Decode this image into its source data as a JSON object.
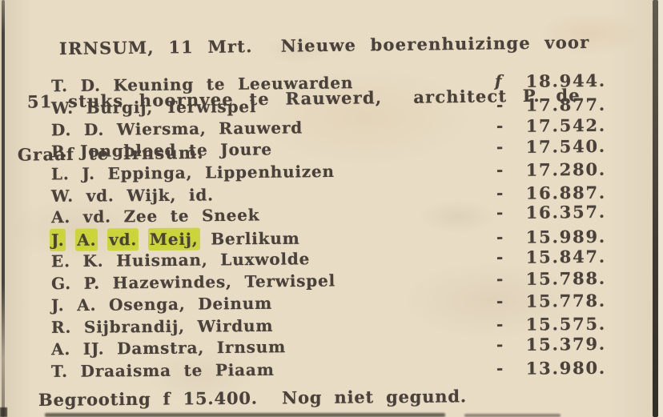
{
  "clipping": {
    "header": {
      "line1": "IRNSUM, 11 Mrt.  Nieuwe boerenhuizinge voor",
      "line2": "51 stuks hoornvee te Rauwerd,  architect P. de",
      "line3": "Graaf te Irnsum."
    },
    "rows": [
      {
        "name": "T. D. Keuning te Leeuwarden",
        "prefix": "f",
        "amount": "18.944."
      },
      {
        "name": "W. Burgij, Terwispel",
        "prefix": "-",
        "amount": "17.877."
      },
      {
        "name": "D. D. Wiersma, Rauwerd",
        "prefix": "-",
        "amount": "17.542."
      },
      {
        "name": "P. Jongbloed te Joure",
        "prefix": "-",
        "amount": "17.540."
      },
      {
        "name": "L. J. Eppinga, Lippenhuizen",
        "prefix": "-",
        "amount": "17.280."
      },
      {
        "name": "W. vd. Wijk, id.",
        "prefix": "-",
        "amount": "16.887."
      },
      {
        "name": "A. vd. Zee te Sneek",
        "prefix": "-",
        "amount": "16.357."
      },
      {
        "highlight": "J. A. vd. Meij,",
        "rest": " Berlikum",
        "prefix": "-",
        "amount": "15.989."
      },
      {
        "name": "E. K. Huisman, Luxwolde",
        "prefix": "-",
        "amount": "15.847."
      },
      {
        "name": "G. P. Hazewindes, Terwispel",
        "prefix": "-",
        "amount": "15.788."
      },
      {
        "name": "J. A. Osenga, Deinum",
        "prefix": "-",
        "amount": "15.778."
      },
      {
        "name": "R. Sijbrandij, Wirdum",
        "prefix": "-",
        "amount": "15.575."
      },
      {
        "name": "A. IJ. Damstra, Irnsum",
        "prefix": "-",
        "amount": "15.379."
      },
      {
        "name": "T. Draaisma te Piaam",
        "prefix": "-",
        "amount": "13.980."
      }
    ],
    "footer": "Begrooting f 15.400.  Nog niet gegund.",
    "colors": {
      "paper": "#e8dcc5",
      "ink": "#49413a",
      "highlight": "#cbd53a",
      "border": "#35312b"
    }
  }
}
